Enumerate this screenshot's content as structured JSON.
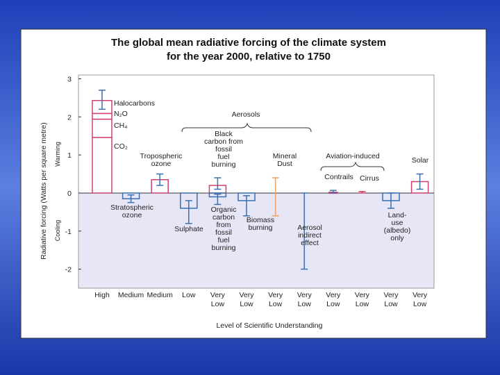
{
  "chart_data": {
    "type": "bar",
    "title": [
      "The global mean radiative forcing of the climate system",
      "for the year 2000, relative to 1750"
    ],
    "ylabel": "Radiative forcing  (Watts per square metre)",
    "warming_label": "Warming",
    "cooling_label": "Cooling",
    "xlabel": "Level of Scientific Understanding",
    "annotations": [
      "Aerosols",
      "Aviation-induced"
    ],
    "ylim": [
      -2.5,
      3.1
    ],
    "yticks": [
      -2,
      -1,
      0,
      1,
      2,
      3
    ],
    "columns": [
      {
        "level": [
          "High"
        ],
        "forcings": [
          {
            "segments": [
              {
                "name": "CO₂",
                "value": 1.46,
                "color": "#d0406e"
              },
              {
                "name": "CH₄",
                "value": 0.48,
                "color": "#d0406e"
              },
              {
                "name": "N₂O",
                "value": 0.15,
                "color": "#d0406e"
              },
              {
                "name": "Halocarbons",
                "value": 0.34,
                "color": "#d0406e"
              }
            ],
            "low": 2.2,
            "high": 2.7
          }
        ]
      },
      {
        "level": [
          "Medium"
        ],
        "forcings": [
          {
            "label": [
              "Stratospheric",
              "ozone"
            ],
            "value": -0.15,
            "low": -0.25,
            "high": -0.05,
            "color": "#3a6fb0"
          }
        ]
      },
      {
        "level": [
          "Medium"
        ],
        "forcings": [
          {
            "label": [
              "Tropospheric",
              "ozone"
            ],
            "value": 0.35,
            "low": 0.2,
            "high": 0.5,
            "color": "#d0406e"
          }
        ]
      },
      {
        "level": [
          "Low"
        ],
        "forcings": [
          {
            "label": [
              "Sulphate"
            ],
            "value": -0.4,
            "low": -0.8,
            "high": -0.2,
            "color": "#3a6fb0"
          }
        ]
      },
      {
        "level": [
          "Very",
          "Low"
        ],
        "forcings": [
          {
            "label": [
              "Black",
              "carbon from",
              "fossil",
              "fuel",
              "burning"
            ],
            "value": 0.2,
            "low": 0.1,
            "high": 0.4,
            "color": "#d0406e"
          },
          {
            "label": [
              "Organic",
              "carbon",
              "from",
              "fossil",
              "fuel",
              "burning"
            ],
            "value": -0.1,
            "low": -0.3,
            "high": -0.03,
            "color": "#3a6fb0"
          }
        ]
      },
      {
        "level": [
          "Very",
          "Low"
        ],
        "forcings": [
          {
            "label": [
              "Biomass",
              "burning"
            ],
            "value": -0.2,
            "low": -0.6,
            "high": -0.07,
            "color": "#3a6fb0"
          }
        ]
      },
      {
        "level": [
          "Very",
          "Low"
        ],
        "forcings": [
          {
            "label": [
              "Mineral",
              "Dust"
            ],
            "low": -0.6,
            "high": 0.4,
            "color": "#f0a060"
          }
        ]
      },
      {
        "level": [
          "Very",
          "Low"
        ],
        "forcings": [
          {
            "label": [
              "Aerosol",
              "indirect",
              "effect"
            ],
            "low": -2,
            "high": 0,
            "color": "#3a6fb0"
          }
        ]
      },
      {
        "level": [
          "Very",
          "Low"
        ],
        "forcings": [
          {
            "label": [
              "Contrails"
            ],
            "value": 0.02,
            "low": 0.005,
            "high": 0.07,
            "color": "#d0406e"
          }
        ]
      },
      {
        "level": [
          "Very",
          "Low"
        ],
        "forcings": [
          {
            "label": [
              "Cirrus"
            ],
            "low": 0,
            "high": 0.04,
            "color": "#d0406e"
          }
        ]
      },
      {
        "level": [
          "Very",
          "Low"
        ],
        "forcings": [
          {
            "label": [
              "Land-",
              "use",
              "(albedo)",
              "only"
            ],
            "value": -0.2,
            "low": -0.4,
            "high": 0,
            "color": "#3a6fb0"
          }
        ]
      },
      {
        "level": [
          "Very",
          "Low"
        ],
        "forcings": [
          {
            "label": [
              "Solar"
            ],
            "value": 0.3,
            "low": 0.1,
            "high": 0.5,
            "color": "#d0406e"
          }
        ]
      }
    ]
  }
}
